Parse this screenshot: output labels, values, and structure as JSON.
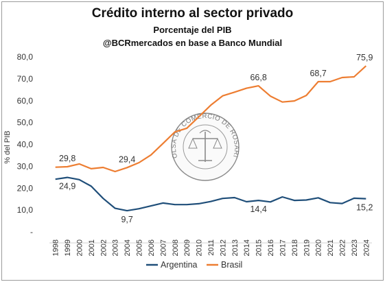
{
  "chart_data": {
    "type": "line",
    "title": "Crédito interno al sector privado",
    "subtitle": "Porcentaje del PIB",
    "source": "@BCRmercados en base a Banco Mundial",
    "ylabel": "% del PIB",
    "xlabel": "",
    "ylim": [
      0,
      80
    ],
    "yticks": [
      "-",
      "10,0",
      "20,0",
      "30,0",
      "40,0",
      "50,0",
      "60,0",
      "70,0",
      "80,0"
    ],
    "x": [
      "1998",
      "1999",
      "2000",
      "2001",
      "2002",
      "2003",
      "2004",
      "2005",
      "2006",
      "2007",
      "2008",
      "2009",
      "2010",
      "2011",
      "2012",
      "2013",
      "2014",
      "2015",
      "2016",
      "2017",
      "2018",
      "2019",
      "2020",
      "2021",
      "2022",
      "2023",
      "2024"
    ],
    "series": [
      {
        "name": "Argentina",
        "color": "#1f4e79",
        "values": [
          24.1,
          24.9,
          23.9,
          20.9,
          15.3,
          10.8,
          9.7,
          10.6,
          11.9,
          13.2,
          12.5,
          12.5,
          12.9,
          13.9,
          15.3,
          15.7,
          13.8,
          14.4,
          13.7,
          16.0,
          14.4,
          14.6,
          15.6,
          13.4,
          13.0,
          15.4,
          15.2
        ]
      },
      {
        "name": "Brasil",
        "color": "#ed7d31",
        "values": [
          29.6,
          29.8,
          31.1,
          28.9,
          29.5,
          27.6,
          29.4,
          31.7,
          35.2,
          40.4,
          45.7,
          47.4,
          52.6,
          57.9,
          62.2,
          63.9,
          65.7,
          66.8,
          62.1,
          59.4,
          59.9,
          62.4,
          68.7,
          68.7,
          70.6,
          70.9,
          75.9
        ]
      }
    ],
    "data_labels": [
      {
        "series": 0,
        "index": 1,
        "text": "24,9"
      },
      {
        "series": 0,
        "index": 6,
        "text": "9,7"
      },
      {
        "series": 0,
        "index": 17,
        "text": "14,4"
      },
      {
        "series": 0,
        "index": 26,
        "text": "15,2"
      },
      {
        "series": 1,
        "index": 1,
        "text": "29,8"
      },
      {
        "series": 1,
        "index": 6,
        "text": "29,4"
      },
      {
        "series": 1,
        "index": 17,
        "text": "66,8"
      },
      {
        "series": 1,
        "index": 22,
        "text": "68,7"
      },
      {
        "series": 1,
        "index": 26,
        "text": "75,9"
      }
    ],
    "legend": {
      "position": "bottom",
      "entries": [
        "Argentina",
        "Brasil"
      ]
    },
    "grid": false,
    "watermark": {
      "text": "BOLSA DE COMERCIO DE ROSARIO"
    }
  }
}
